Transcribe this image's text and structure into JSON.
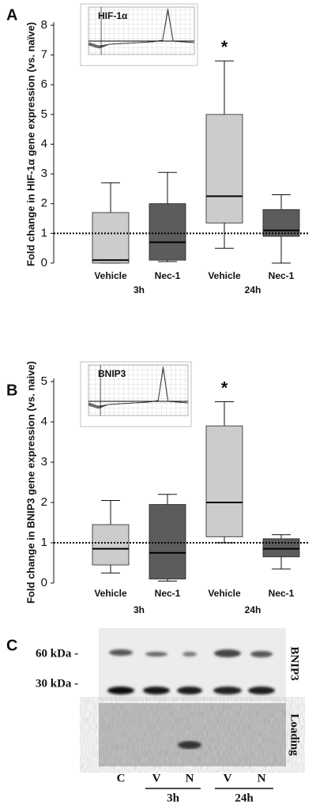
{
  "chart_data": [
    {
      "type": "box",
      "panel": "A",
      "y_label": "Fold change in HIF-1α gene expression (vs. naïve)",
      "inset_label": "HIF-1α",
      "categories": [
        "Vehicle",
        "Nec-1",
        "Vehicle",
        "Nec-1"
      ],
      "groups": [
        "3h",
        "24h"
      ],
      "colors": [
        "#cccccc",
        "#5c5c5c",
        "#cccccc",
        "#5c5c5c"
      ],
      "boxes": [
        {
          "low": 0.0,
          "q1": 0.0,
          "median": 0.1,
          "q3": 1.7,
          "high": 2.7
        },
        {
          "low": 0.05,
          "q1": 0.1,
          "median": 0.7,
          "q3": 2.0,
          "high": 3.05
        },
        {
          "low": 0.5,
          "q1": 1.35,
          "median": 2.25,
          "q3": 5.0,
          "high": 6.8
        },
        {
          "low": 0.0,
          "q1": 0.9,
          "median": 1.1,
          "q3": 1.8,
          "high": 2.3
        }
      ],
      "reference_line": 1,
      "annotation": "*",
      "ylim": [
        0,
        8
      ],
      "yticks": [
        0,
        1,
        2,
        3,
        4,
        5,
        6,
        7,
        8
      ]
    },
    {
      "type": "box",
      "panel": "B",
      "y_label": "Fold change in BNIP3 gene expression (vs. naive)",
      "inset_label": "BNIP3",
      "categories": [
        "Vehicle",
        "Nec-1",
        "Vehicle",
        "Nec-1"
      ],
      "groups": [
        "3h",
        "24h"
      ],
      "colors": [
        "#cccccc",
        "#5c5c5c",
        "#cccccc",
        "#5c5c5c"
      ],
      "boxes": [
        {
          "low": 0.25,
          "q1": 0.45,
          "median": 0.85,
          "q3": 1.45,
          "high": 2.05
        },
        {
          "low": 0.05,
          "q1": 0.1,
          "median": 0.75,
          "q3": 1.95,
          "high": 2.2
        },
        {
          "low": 1.0,
          "q1": 1.15,
          "median": 2.0,
          "q3": 3.9,
          "high": 4.5
        },
        {
          "low": 0.35,
          "q1": 0.65,
          "median": 0.85,
          "q3": 1.1,
          "high": 1.2
        }
      ],
      "reference_line": 1,
      "annotation": "*",
      "ylim": [
        0,
        5
      ],
      "yticks": [
        0,
        1,
        2,
        3,
        4,
        5
      ]
    }
  ],
  "blot": {
    "panel": "C",
    "markers": [
      "60 kDa -",
      "30 kDa -"
    ],
    "blot_labels": [
      "BNIP3",
      "Loading"
    ],
    "lanes": [
      "C",
      "V",
      "N",
      "V",
      "N"
    ],
    "groups": [
      "3h",
      "24h"
    ]
  }
}
